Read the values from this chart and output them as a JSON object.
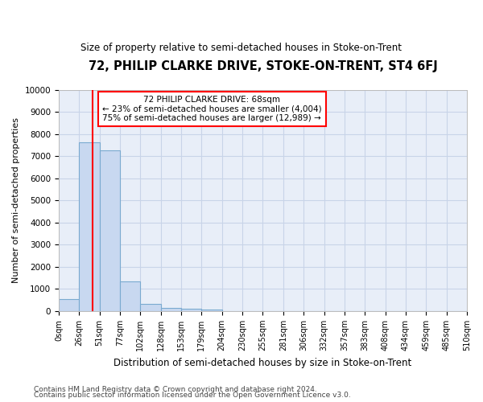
{
  "title": "72, PHILIP CLARKE DRIVE, STOKE-ON-TRENT, ST4 6FJ",
  "subtitle": "Size of property relative to semi-detached houses in Stoke-on-Trent",
  "xlabel": "Distribution of semi-detached houses by size in Stoke-on-Trent",
  "ylabel": "Number of semi-detached properties",
  "footnote1": "Contains HM Land Registry data © Crown copyright and database right 2024.",
  "footnote2": "Contains public sector information licensed under the Open Government Licence v3.0.",
  "bar_values": [
    530,
    7650,
    7280,
    1350,
    340,
    160,
    110,
    70,
    0,
    0,
    0,
    0,
    0,
    0,
    0,
    0,
    0,
    0,
    0,
    0
  ],
  "x_labels": [
    "0sqm",
    "26sqm",
    "51sqm",
    "77sqm",
    "102sqm",
    "128sqm",
    "153sqm",
    "179sqm",
    "204sqm",
    "230sqm",
    "255sqm",
    "281sqm",
    "306sqm",
    "332sqm",
    "357sqm",
    "383sqm",
    "408sqm",
    "434sqm",
    "459sqm",
    "485sqm",
    "510sqm"
  ],
  "bar_color": "#c8d8f0",
  "bar_edge_color": "#7aaad0",
  "property_label": "72 PHILIP CLARKE DRIVE: 68sqm",
  "pct_smaller": 23,
  "pct_smaller_n": "4,004",
  "pct_larger": 75,
  "pct_larger_n": "12,989",
  "ylim": [
    0,
    10000
  ],
  "yticks": [
    0,
    1000,
    2000,
    3000,
    4000,
    5000,
    6000,
    7000,
    8000,
    9000,
    10000
  ],
  "grid_color": "#c8d4e8",
  "bg_color": "#e8eef8"
}
